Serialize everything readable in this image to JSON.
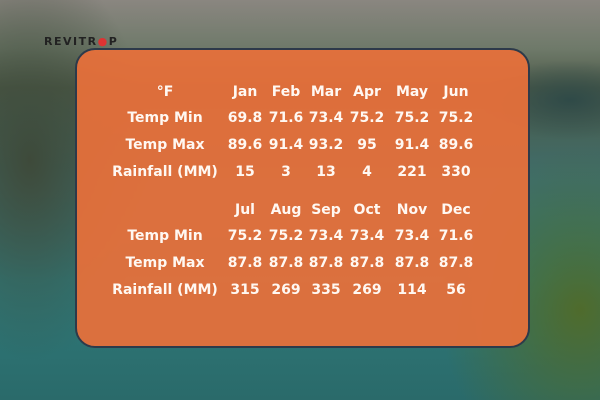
{
  "logo": {
    "text": "REVITRIP"
  },
  "colors": {
    "panel": "#e8703a",
    "border": "#2d3a4a",
    "text": "#fff8f2"
  },
  "unit_label": "°F",
  "tables": [
    {
      "months": [
        "Jan",
        "Feb",
        "Mar",
        "Apr",
        "May",
        "Jun"
      ],
      "rows": [
        {
          "label": "Temp Min",
          "values": [
            "69.8",
            "71.6",
            "73.4",
            "75.2",
            "75.2",
            "75.2"
          ]
        },
        {
          "label": "Temp Max",
          "values": [
            "89.6",
            "91.4",
            "93.2",
            "95",
            "91.4",
            "89.6"
          ]
        },
        {
          "label": "Rainfall (MM)",
          "values": [
            "15",
            "3",
            "13",
            "4",
            "221",
            "330"
          ]
        }
      ]
    },
    {
      "months": [
        "Jul",
        "Aug",
        "Sep",
        "Oct",
        "Nov",
        "Dec"
      ],
      "rows": [
        {
          "label": "Temp Min",
          "values": [
            "75.2",
            "75.2",
            "73.4",
            "73.4",
            "73.4",
            "71.6"
          ]
        },
        {
          "label": "Temp Max",
          "values": [
            "87.8",
            "87.8",
            "87.8",
            "87.8",
            "87.8",
            "87.8"
          ]
        },
        {
          "label": "Rainfall (MM)",
          "values": [
            "315",
            "269",
            "335",
            "269",
            "114",
            "56"
          ]
        }
      ]
    }
  ]
}
